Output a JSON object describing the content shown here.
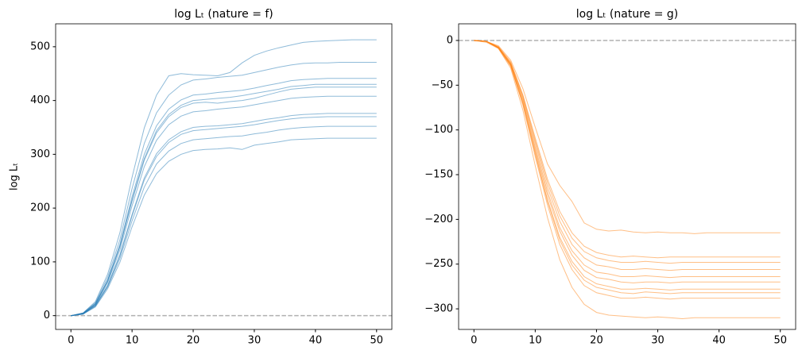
{
  "chart_data": [
    {
      "type": "line",
      "title": "log Lₜ (nature = f)",
      "ylabel": "log Lₜ",
      "color": "#1f77b4",
      "x": [
        0,
        2,
        4,
        6,
        8,
        10,
        12,
        14,
        16,
        18,
        20,
        22,
        24,
        26,
        28,
        30,
        32,
        34,
        36,
        38,
        40,
        42,
        44,
        46,
        48,
        50
      ],
      "xlim": [
        -2.5,
        52.5
      ],
      "xticks": [
        0,
        10,
        20,
        30,
        40,
        50
      ],
      "ylim": [
        -25.6,
        542.6
      ],
      "yticks": [
        0,
        100,
        200,
        300,
        400,
        500
      ],
      "hline": 0,
      "series": [
        {
          "values": [
            0,
            5,
            26,
            77,
            154,
            257,
            349,
            410,
            446,
            450,
            448,
            447,
            446,
            452,
            470,
            484,
            492,
            498,
            503,
            508,
            510,
            511,
            512,
            513,
            513,
            513
          ]
        },
        {
          "values": [
            0,
            5,
            24,
            71,
            141,
            236,
            320,
            377,
            410,
            429,
            438,
            440,
            443,
            445,
            447,
            452,
            457,
            462,
            466,
            469,
            470,
            470,
            471,
            471,
            471,
            471
          ]
        },
        {
          "values": [
            0,
            4,
            22,
            66,
            132,
            221,
            300,
            353,
            384,
            401,
            410,
            412,
            415,
            417,
            419,
            423,
            428,
            432,
            437,
            439,
            440,
            441,
            441,
            441,
            441,
            441
          ]
        },
        {
          "values": [
            0,
            4,
            22,
            65,
            129,
            215,
            292,
            344,
            374,
            391,
            400,
            402,
            404,
            406,
            409,
            413,
            417,
            421,
            426,
            428,
            430,
            430,
            430,
            430,
            430,
            430
          ]
        },
        {
          "values": [
            0,
            4,
            21,
            64,
            128,
            213,
            289,
            340,
            370,
            387,
            395,
            397,
            395,
            398,
            400,
            404,
            410,
            416,
            421,
            423,
            425,
            425,
            425,
            425,
            425,
            425
          ]
        },
        {
          "values": [
            0,
            4,
            20,
            61,
            122,
            204,
            277,
            326,
            355,
            371,
            379,
            381,
            384,
            386,
            388,
            392,
            396,
            400,
            404,
            406,
            407,
            408,
            408,
            408,
            408,
            408
          ]
        },
        {
          "values": [
            0,
            4,
            19,
            56,
            113,
            188,
            256,
            301,
            327,
            342,
            350,
            352,
            353,
            355,
            357,
            361,
            365,
            368,
            372,
            374,
            375,
            376,
            376,
            376,
            376,
            376
          ]
        },
        {
          "values": [
            0,
            3,
            18,
            55,
            111,
            185,
            252,
            296,
            322,
            337,
            344,
            346,
            348,
            350,
            352,
            355,
            359,
            363,
            366,
            368,
            369,
            370,
            370,
            370,
            370,
            370
          ]
        },
        {
          "values": [
            0,
            3,
            18,
            53,
            106,
            176,
            239,
            282,
            306,
            320,
            327,
            329,
            331,
            333,
            334,
            338,
            341,
            345,
            348,
            350,
            351,
            352,
            352,
            352,
            352,
            352
          ]
        },
        {
          "values": [
            0,
            3,
            16,
            50,
            99,
            165,
            224,
            264,
            287,
            300,
            307,
            309,
            310,
            312,
            309,
            317,
            320,
            323,
            327,
            328,
            329,
            330,
            330,
            330,
            330,
            330
          ]
        }
      ]
    },
    {
      "type": "line",
      "title": "log Lₜ (nature = g)",
      "color": "#ff7f0e",
      "x": [
        0,
        2,
        4,
        6,
        8,
        10,
        12,
        14,
        16,
        18,
        20,
        22,
        24,
        26,
        28,
        30,
        32,
        34,
        36,
        38,
        40,
        42,
        44,
        46,
        48,
        50
      ],
      "xlim": [
        -2.5,
        52.5
      ],
      "xticks": [
        0,
        10,
        20,
        30,
        40,
        50
      ],
      "ylim": [
        -323,
        18.6
      ],
      "yticks": [
        0,
        {
          "value": -50,
          "label": "−50"
        },
        {
          "value": -100,
          "label": "−100"
        },
        {
          "value": -150,
          "label": "−150"
        },
        {
          "value": -200,
          "label": "−200"
        },
        {
          "value": -250,
          "label": "−250"
        },
        {
          "value": -300,
          "label": "−300"
        }
      ],
      "hline": 0,
      "series": [
        {
          "values": [
            0,
            -1,
            -6,
            -22,
            -54,
            -97,
            -138,
            -162,
            -180,
            -204,
            -211,
            -213,
            -212,
            -214,
            -215,
            -214,
            -215,
            -215,
            -216,
            -215,
            -215,
            -215,
            -215,
            -215,
            -215,
            -215
          ]
        },
        {
          "values": [
            0,
            -1,
            -7,
            -24,
            -61,
            -109,
            -155,
            -191,
            -215,
            -230,
            -237,
            -240,
            -242,
            -241,
            -242,
            -243,
            -242,
            -242,
            -242,
            -242,
            -242,
            -242,
            -242,
            -242,
            -242,
            -242
          ]
        },
        {
          "values": [
            0,
            -1,
            -7,
            -25,
            -62,
            -112,
            -159,
            -196,
            -221,
            -236,
            -243,
            -246,
            -248,
            -248,
            -247,
            -248,
            -249,
            -248,
            -248,
            -248,
            -248,
            -248,
            -248,
            -248,
            -248,
            -248
          ]
        },
        {
          "values": [
            0,
            -1,
            -8,
            -26,
            -64,
            -115,
            -164,
            -202,
            -228,
            -243,
            -251,
            -253,
            -256,
            -256,
            -255,
            -256,
            -257,
            -256,
            -256,
            -256,
            -256,
            -256,
            -256,
            -256,
            -256,
            -256
          ]
        },
        {
          "values": [
            0,
            -1,
            -8,
            -26,
            -66,
            -119,
            -169,
            -209,
            -235,
            -251,
            -259,
            -261,
            -264,
            -264,
            -263,
            -264,
            -265,
            -264,
            -264,
            -264,
            -264,
            -264,
            -264,
            -264,
            -264,
            -264
          ]
        },
        {
          "values": [
            0,
            -1,
            -8,
            -27,
            -68,
            -122,
            -173,
            -213,
            -240,
            -257,
            -265,
            -267,
            -270,
            -271,
            -270,
            -270,
            -271,
            -270,
            -270,
            -270,
            -270,
            -270,
            -270,
            -270,
            -270,
            -270
          ]
        },
        {
          "values": [
            0,
            -1,
            -8,
            -28,
            -70,
            -125,
            -178,
            -220,
            -247,
            -264,
            -272,
            -275,
            -278,
            -278,
            -277,
            -278,
            -279,
            -278,
            -278,
            -278,
            -278,
            -278,
            -278,
            -278,
            -278,
            -278
          ]
        },
        {
          "values": [
            0,
            -1,
            -8,
            -28,
            -71,
            -127,
            -180,
            -223,
            -251,
            -268,
            -276,
            -279,
            -282,
            -283,
            -281,
            -282,
            -283,
            -282,
            -282,
            -282,
            -282,
            -282,
            -282,
            -282,
            -282,
            -282
          ]
        },
        {
          "values": [
            0,
            -1,
            -9,
            -29,
            -72,
            -130,
            -184,
            -228,
            -256,
            -274,
            -282,
            -285,
            -288,
            -288,
            -287,
            -288,
            -289,
            -288,
            -288,
            -288,
            -288,
            -288,
            -288,
            -288,
            -288,
            -288
          ]
        },
        {
          "values": [
            0,
            -2,
            -9,
            -31,
            -78,
            -140,
            -198,
            -245,
            -276,
            -295,
            -304,
            -307,
            -308,
            -309,
            -310,
            -309,
            -310,
            -311,
            -310,
            -310,
            -310,
            -310,
            -310,
            -310,
            -310,
            -310
          ]
        }
      ]
    }
  ]
}
